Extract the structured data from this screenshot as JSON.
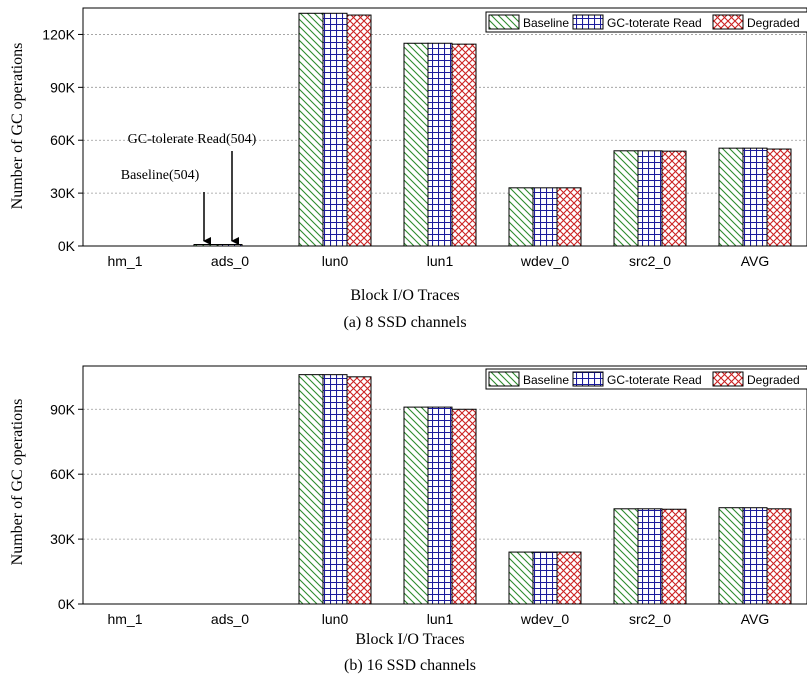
{
  "chart_data": [
    {
      "type": "bar",
      "caption": "(a) 8 SSD channels",
      "xlabel": "Block I/O Traces",
      "ylabel": "Number of GC operations",
      "categories": [
        "hm_1",
        "ads_0",
        "lun0",
        "lun1",
        "wdev_0",
        "src2_0",
        "AVG"
      ],
      "yticks": [
        "0K",
        "30K",
        "60K",
        "90K",
        "120K"
      ],
      "ylim": [
        0,
        135000
      ],
      "grid": "horizontal dotted",
      "legend_position": "top-right",
      "series": [
        {
          "name": "Baseline",
          "values": [
            0,
            504,
            132000,
            115000,
            33000,
            54000,
            55500
          ],
          "color": "#2e8b2e",
          "pattern": "diagonal"
        },
        {
          "name": "GC-toterate Read",
          "values": [
            0,
            504,
            132000,
            115000,
            33000,
            54000,
            55500
          ],
          "color": "#1c1c9c",
          "pattern": "grid"
        },
        {
          "name": "Degraded",
          "values": [
            0,
            0,
            131000,
            114500,
            33000,
            53800,
            55000
          ],
          "color": "#cc2222",
          "pattern": "crosshatch"
        }
      ],
      "annotations": [
        "GC-tolerate Read(504)",
        "Baseline(504)"
      ]
    },
    {
      "type": "bar",
      "caption": "(b) 16 SSD channels",
      "xlabel": "Block I/O Traces",
      "ylabel": "Number of GC operations",
      "categories": [
        "hm_1",
        "ads_0",
        "lun0",
        "lun1",
        "wdev_0",
        "src2_0",
        "AVG"
      ],
      "yticks": [
        "0K",
        "30K",
        "60K",
        "90K"
      ],
      "ylim": [
        0,
        110000
      ],
      "grid": "horizontal dotted",
      "legend_position": "top-right",
      "series": [
        {
          "name": "Baseline",
          "values": [
            0,
            0,
            106000,
            91000,
            24000,
            44000,
            44500
          ],
          "color": "#2e8b2e",
          "pattern": "diagonal"
        },
        {
          "name": "GC-toterate Read",
          "values": [
            0,
            0,
            106000,
            91000,
            24000,
            44000,
            44500
          ],
          "color": "#1c1c9c",
          "pattern": "grid"
        },
        {
          "name": "Degraded",
          "values": [
            0,
            0,
            105000,
            90000,
            24000,
            43800,
            44000
          ],
          "color": "#cc2222",
          "pattern": "crosshatch"
        }
      ],
      "annotations": []
    }
  ]
}
